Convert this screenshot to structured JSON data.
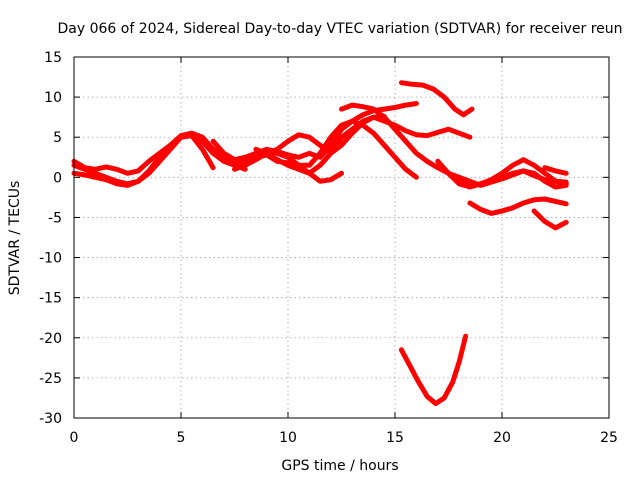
{
  "chart_data": {
    "type": "line",
    "title": "Day 066 of 2024, Sidereal Day-to-day VTEC variation (SDTVAR) for receiver reun",
    "xlabel": "GPS time / hours",
    "ylabel": "SDTVAR / TECUs",
    "xlim": [
      0,
      25
    ],
    "ylim": [
      -30,
      15
    ],
    "xticks": [
      0,
      5,
      10,
      15,
      20,
      25
    ],
    "yticks": [
      15,
      10,
      5,
      0,
      -5,
      -10,
      -15,
      -20,
      -25,
      -30
    ],
    "xtick_labels": [
      "0",
      "5",
      "10",
      "15",
      "20",
      "25"
    ],
    "ytick_labels": [
      "15",
      "10",
      "5",
      "0",
      "-5",
      "-10",
      "-15",
      "-20",
      "-25",
      "-30"
    ],
    "grid": true,
    "color": "#ff0000",
    "series": [
      {
        "name": "s1",
        "x": [
          0,
          0.5,
          1,
          1.5,
          2,
          2.5,
          3,
          3.5,
          4,
          4.5,
          5,
          5.5,
          6,
          6.5,
          7,
          7.5,
          8,
          8.5,
          9,
          9.5,
          10,
          10.5,
          11,
          11.5,
          12,
          12.5,
          13,
          13.5,
          14,
          14.5,
          15,
          15.5,
          16
        ],
        "y": [
          1.5,
          1,
          0.5,
          0,
          -0.5,
          -0.8,
          -0.5,
          0.5,
          2,
          3.5,
          5,
          5.3,
          4.5,
          3.5,
          2.5,
          2,
          2.2,
          2.5,
          2.8,
          2,
          1.8,
          1.5,
          1.5,
          3,
          5,
          6.5,
          7,
          6.5,
          5.5,
          4,
          2.5,
          1,
          0
        ]
      },
      {
        "name": "s2",
        "x": [
          0,
          0.5,
          1,
          1.5,
          2,
          2.5,
          3,
          3.5,
          4,
          4.5,
          5,
          5.5,
          6,
          6.5,
          7,
          7.5,
          8
        ],
        "y": [
          2,
          1.2,
          1,
          1.3,
          1,
          0.5,
          0.8,
          2,
          3,
          4,
          5.2,
          5.5,
          5,
          3.5,
          2.5,
          1.5,
          1
        ]
      },
      {
        "name": "s3",
        "x": [
          0,
          0.5,
          1,
          1.5,
          2,
          2.5,
          3,
          3.5,
          4,
          4.5,
          5,
          5.5,
          6,
          6.5
        ],
        "y": [
          0.5,
          0.3,
          0,
          -0.3,
          -0.8,
          -1,
          -0.5,
          0.8,
          2.5,
          4,
          5,
          5.2,
          3.5,
          1.2
        ]
      },
      {
        "name": "s4",
        "x": [
          5.5,
          6,
          6.5,
          7,
          7.5,
          8,
          8.5,
          9,
          9.5,
          10,
          10.5,
          11,
          11.5,
          12,
          12.5
        ],
        "y": [
          5.5,
          4.5,
          3,
          2,
          1.5,
          1.8,
          2.5,
          3.2,
          3,
          2.5,
          1.5,
          0.5,
          -0.5,
          -0.3,
          0.5
        ]
      },
      {
        "name": "s5",
        "x": [
          6.5,
          7,
          7.5,
          8,
          8.5,
          9,
          9.5,
          10,
          10.5,
          11,
          11.5,
          12,
          12.5,
          13,
          13.5,
          14,
          14.5,
          15,
          15.5,
          16
        ],
        "y": [
          4.5,
          3,
          2.2,
          2.5,
          3,
          3.5,
          3.2,
          2.8,
          2.5,
          3,
          2.5,
          4,
          6,
          7,
          7.8,
          8.3,
          8.5,
          8.7,
          9,
          9.2
        ]
      },
      {
        "name": "s6",
        "x": [
          7.5,
          8,
          8.5,
          9,
          9.5,
          10,
          10.5,
          11,
          11.5,
          12,
          12.5,
          13,
          13.5,
          14,
          14.5,
          15,
          15.5,
          16,
          16.5,
          17,
          17.5,
          18,
          18.5
        ],
        "y": [
          1,
          1.5,
          2.2,
          3,
          3.5,
          4.5,
          5.3,
          5,
          4,
          3,
          4,
          5.5,
          6.8,
          7.5,
          7,
          6.5,
          5.8,
          5.3,
          5.2,
          5.6,
          6,
          5.5,
          5
        ]
      },
      {
        "name": "s7",
        "x": [
          8.5,
          9,
          9.5,
          10,
          10.5,
          11,
          11.5,
          12,
          12.5,
          13,
          13.5,
          14,
          14.5
        ],
        "y": [
          3.5,
          3,
          2.2,
          1.5,
          1,
          0.5,
          1.5,
          3,
          5,
          6,
          7,
          7.5,
          7.6
        ]
      },
      {
        "name": "s8",
        "x": [
          12.5,
          13,
          13.5,
          14,
          14.5,
          15,
          15.5,
          16,
          16.5,
          17,
          17.5,
          18,
          18.5,
          19,
          19.5,
          20,
          20.5,
          21,
          21.5,
          22,
          22.5,
          23
        ],
        "y": [
          8.5,
          9,
          8.8,
          8.5,
          7.5,
          6,
          4.5,
          3,
          2,
          1.2,
          0.5,
          0,
          -0.5,
          -1,
          -0.6,
          -0.2,
          0.3,
          0.8,
          0.5,
          -0.5,
          -1.2,
          -1
        ]
      },
      {
        "name": "s9",
        "x": [
          15.3,
          15.8,
          16.3,
          16.8,
          17.3,
          17.8,
          18.2,
          18.6
        ],
        "y": [
          11.8,
          11.6,
          11.5,
          11,
          10,
          8.5,
          7.8,
          8.5
        ]
      },
      {
        "name": "s10",
        "x": [
          17,
          17.5,
          18,
          18.5,
          19,
          19.5,
          20,
          20.5,
          21,
          21.5,
          22,
          22.5,
          23
        ],
        "y": [
          2,
          0.5,
          -0.8,
          -1.2,
          -0.8,
          -0.5,
          0,
          0.5,
          0.8,
          0.2,
          -0.3,
          -0.5,
          -0.6
        ]
      },
      {
        "name": "s11",
        "x": [
          18,
          18.5,
          19,
          19.5,
          20,
          20.5,
          21,
          21.5,
          22,
          22.5,
          23
        ],
        "y": [
          -0.5,
          -1,
          -0.8,
          -0.3,
          0.5,
          1.5,
          2.2,
          1.5,
          0.5,
          -0.5,
          -0.8
        ]
      },
      {
        "name": "s12",
        "x": [
          18.5,
          19,
          19.5,
          20,
          20.5,
          21,
          21.5,
          22,
          22.5,
          23
        ],
        "y": [
          -3.2,
          -4,
          -4.5,
          -4.2,
          -3.8,
          -3.2,
          -2.8,
          -2.7,
          -3,
          -3.3
        ]
      },
      {
        "name": "s13",
        "x": [
          21.5,
          22,
          22.5,
          23
        ],
        "y": [
          -4.2,
          -5.5,
          -6.3,
          -5.6
        ]
      },
      {
        "name": "s14",
        "x": [
          22,
          22.5,
          23
        ],
        "y": [
          1.2,
          0.8,
          0.5
        ]
      },
      {
        "name": "s15",
        "x": [
          15.3,
          15.7,
          16.1,
          16.5,
          16.9,
          17.3,
          17.7,
          18,
          18.3
        ],
        "y": [
          -21.5,
          -23.5,
          -25.5,
          -27.3,
          -28.2,
          -27.5,
          -25.5,
          -23,
          -19.8
        ]
      }
    ]
  }
}
